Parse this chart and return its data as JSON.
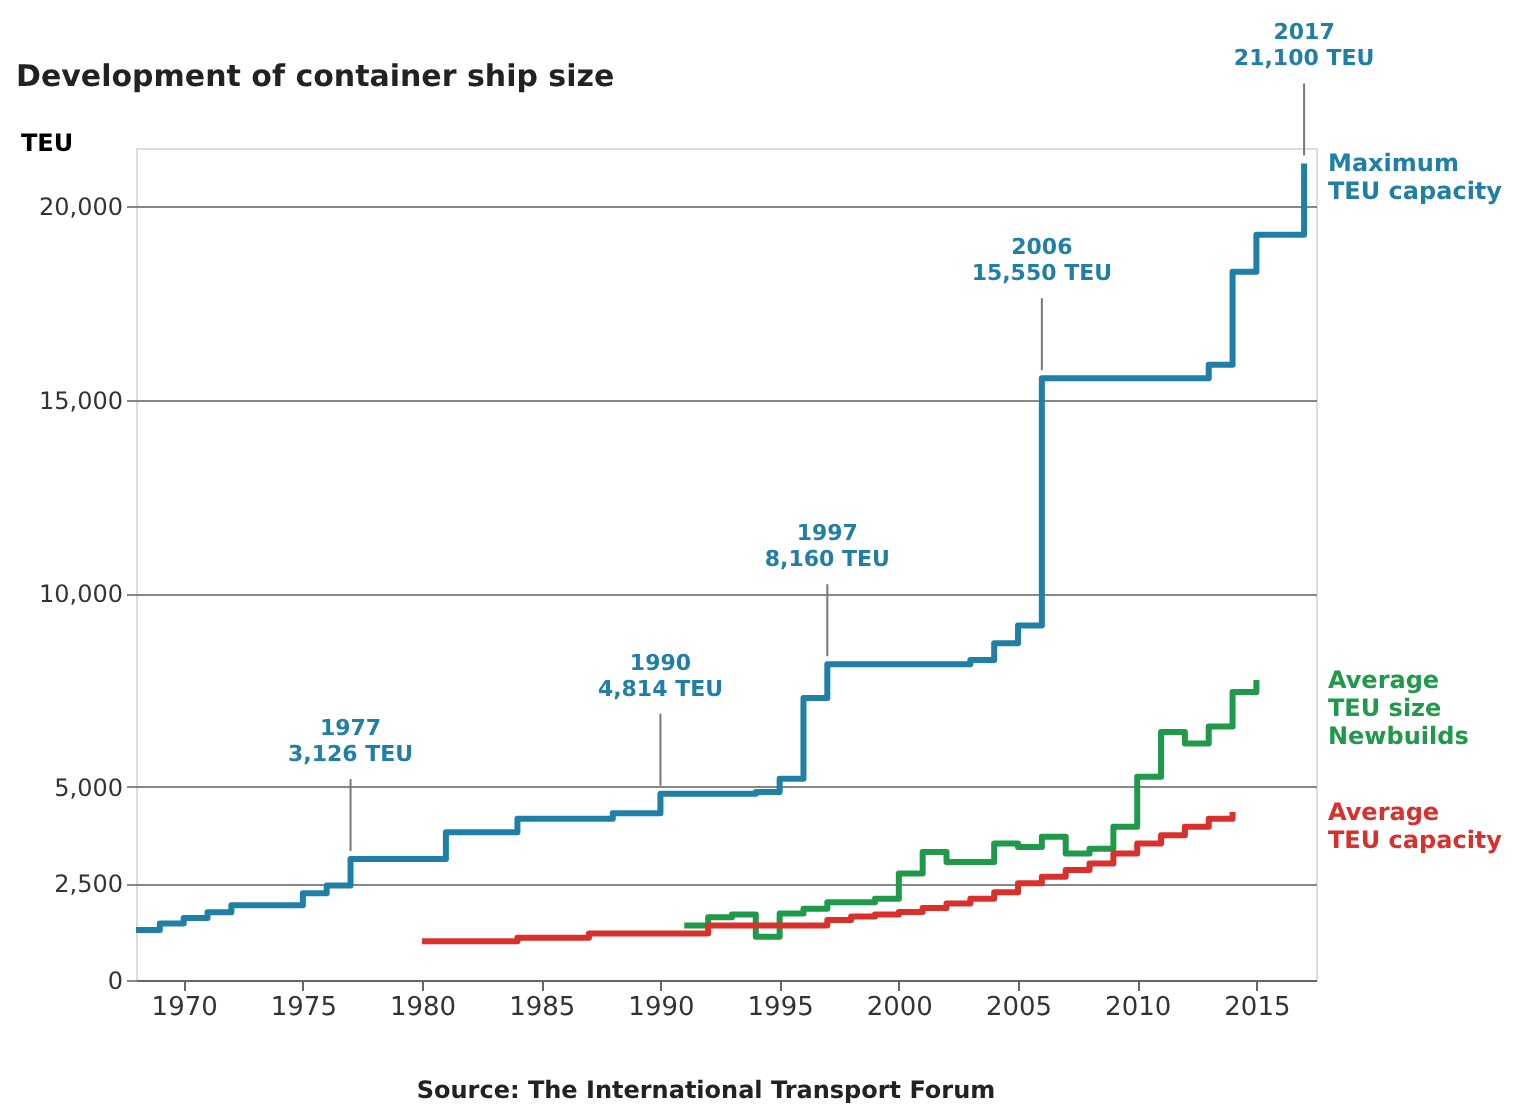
{
  "chart_data": {
    "type": "step",
    "title": "Development of container ship size",
    "ylabel": "TEU",
    "xlim": [
      1968,
      2017.5
    ],
    "xticks": [
      1970,
      1975,
      1980,
      1985,
      1990,
      1995,
      2000,
      2005,
      2010,
      2015
    ],
    "ylim": [
      0,
      21500
    ],
    "yticks": [
      {
        "value": 0,
        "label": "0"
      },
      {
        "value": 2500,
        "label": "2,500"
      },
      {
        "value": 5000,
        "label": "5,000"
      },
      {
        "value": 10000,
        "label": "10,000"
      },
      {
        "value": 15000,
        "label": "15,000"
      },
      {
        "value": 20000,
        "label": "20,000"
      }
    ],
    "grid": "y",
    "line_style": "solid",
    "marker": "none",
    "series": [
      {
        "name": "Maximum\nTEU capacity",
        "color": "#1f7fa6",
        "x": [
          1968,
          1969,
          1970,
          1971,
          1972,
          1975,
          1976,
          1977,
          1981,
          1984,
          1988,
          1990,
          1994,
          1995,
          1996,
          1997,
          2003,
          2004,
          2005,
          2006,
          2013,
          2014,
          2015,
          2017
        ],
        "values": [
          1290,
          1460,
          1600,
          1750,
          1930,
          2240,
          2440,
          3126,
          3820,
          4170,
          4310,
          4814,
          4860,
          5200,
          7290,
          8160,
          8270,
          8700,
          9160,
          15550,
          15900,
          18300,
          19260,
          21100
        ]
      },
      {
        "name": "Average\nTEU size\nNewbuilds",
        "color": "#1e9a4a",
        "x": [
          1991,
          1992,
          1993,
          1994,
          1995,
          1996,
          1997,
          1999,
          2000,
          2001,
          2002,
          2004,
          2005,
          2006,
          2007,
          2008,
          2009,
          2010,
          2011,
          2012,
          2013,
          2014,
          2015
        ],
        "values": [
          1410,
          1620,
          1690,
          1120,
          1720,
          1840,
          2010,
          2100,
          2750,
          3310,
          3050,
          3530,
          3440,
          3700,
          3270,
          3390,
          3960,
          5250,
          6410,
          6110,
          6550,
          7440,
          7750
        ]
      },
      {
        "name": "Average\nTEU capacity",
        "color": "#d9302c",
        "x": [
          1980,
          1984,
          1987,
          1992,
          1997,
          1998,
          1999,
          2000,
          2001,
          2002,
          2003,
          2004,
          2005,
          2006,
          2007,
          2008,
          2009,
          2010,
          2011,
          2012,
          2013,
          2014
        ],
        "values": [
          1000,
          1090,
          1200,
          1410,
          1550,
          1640,
          1690,
          1760,
          1860,
          1980,
          2100,
          2270,
          2500,
          2670,
          2840,
          3010,
          3270,
          3530,
          3740,
          3960,
          4170,
          4340
        ]
      }
    ],
    "annotations": [
      {
        "text": "1977\n3,126 TEU",
        "x": 1977,
        "y": 3126
      },
      {
        "text": "1990\n4,814 TEU",
        "x": 1990,
        "y": 4814
      },
      {
        "text": "1997\n8,160 TEU",
        "x": 1997,
        "y": 8160
      },
      {
        "text": "2006\n15,550 TEU",
        "x": 2006,
        "y": 15550
      },
      {
        "text": "2017\n21,100 TEU",
        "x": 2017,
        "y": 21100
      },
      "Source: The International Transport Forum"
    ]
  }
}
